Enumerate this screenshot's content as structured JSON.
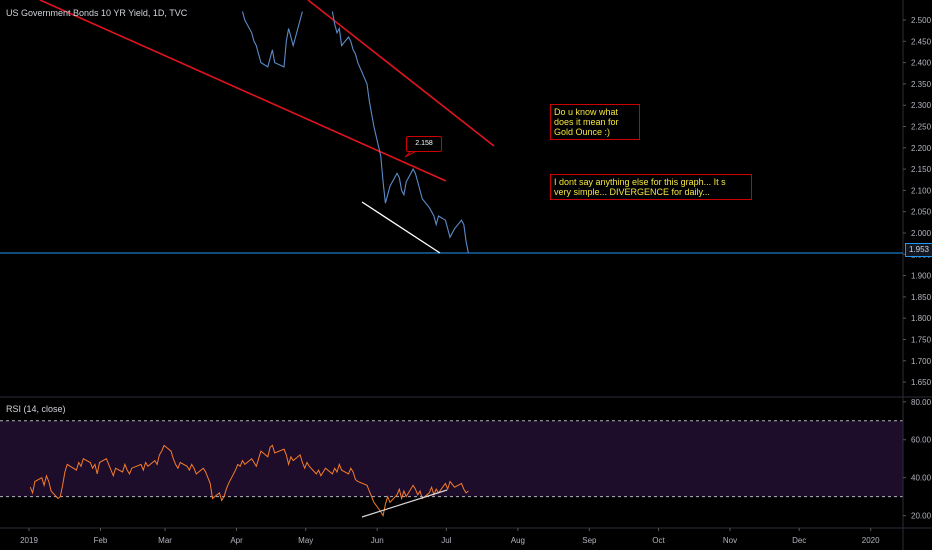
{
  "header": {
    "symbol_title": "US Government Bonds 10 YR Yield, 1D, TVC"
  },
  "rsi_panel": {
    "title": "RSI (14, close)"
  },
  "annotations": {
    "callout_value": "2.158",
    "note1_lines": [
      "Do u know what",
      "does it mean for",
      "Gold Ounce :)"
    ],
    "note2_lines": [
      "I dont say anything else for this graph...  It s",
      "very simple... DIVERGENCE for daily..."
    ]
  },
  "price_tag": "1.953",
  "colors": {
    "background": "#000000",
    "price_line": "#5b8ac7",
    "trendline_red": "#e0141e",
    "divergence_line": "#ffffff",
    "rsi_line": "#f57c2a",
    "rsi_band": "#1d0c2a",
    "current_price_line": "#2196f3"
  },
  "chart_data": {
    "type": "line",
    "x_tick_labels": [
      "2019",
      "Feb",
      "Mar",
      "Apr",
      "May",
      "Jun",
      "Jul",
      "Aug",
      "Sep",
      "Oct",
      "Nov",
      "Dec",
      "2020"
    ],
    "y_tick_labels": [
      "2.500",
      "2.450",
      "2.400",
      "2.350",
      "2.300",
      "2.250",
      "2.200",
      "2.150",
      "2.100",
      "2.050",
      "2.000",
      "1.950",
      "1.900",
      "1.850",
      "1.800",
      "1.750",
      "1.700",
      "1.650"
    ],
    "ylim": [
      1.62,
      2.52
    ],
    "rsi": {
      "y_tick_labels": [
        "80.00",
        "60.00",
        "40.00",
        "20.00"
      ],
      "ylim": [
        14,
        82
      ],
      "band": [
        30,
        70
      ]
    },
    "series": [
      {
        "values_price": [
          [
            "2019-04-04",
            2.52
          ],
          [
            "2019-04-05",
            2.5
          ],
          [
            "2019-04-08",
            2.47
          ],
          [
            "2019-04-09",
            2.45
          ],
          [
            "2019-04-10",
            2.44
          ],
          [
            "2019-04-11",
            2.42
          ],
          [
            "2019-04-12",
            2.4
          ],
          [
            "2019-04-15",
            2.39
          ],
          [
            "2019-04-16",
            2.41
          ],
          [
            "2019-04-17",
            2.43
          ],
          [
            "2019-04-18",
            2.4
          ],
          [
            "2019-04-22",
            2.39
          ],
          [
            "2019-04-23",
            2.45
          ],
          [
            "2019-04-24",
            2.48
          ],
          [
            "2019-04-25",
            2.46
          ],
          [
            "2019-04-26",
            2.44
          ],
          [
            "2019-04-29",
            2.5
          ],
          [
            "2019-04-30",
            2.52
          ],
          [
            "2019-05-13",
            2.52
          ],
          [
            "2019-05-14",
            2.49
          ],
          [
            "2019-05-15",
            2.47
          ],
          [
            "2019-05-16",
            2.48
          ],
          [
            "2019-05-17",
            2.44
          ],
          [
            "2019-05-20",
            2.46
          ],
          [
            "2019-05-21",
            2.45
          ],
          [
            "2019-05-22",
            2.43
          ],
          [
            "2019-05-23",
            2.42
          ],
          [
            "2019-05-24",
            2.4
          ],
          [
            "2019-05-28",
            2.35
          ],
          [
            "2019-05-29",
            2.31
          ],
          [
            "2019-05-30",
            2.28
          ],
          [
            "2019-05-31",
            2.25
          ],
          [
            "2019-06-03",
            2.18
          ],
          [
            "2019-06-04",
            2.12
          ],
          [
            "2019-06-05",
            2.07
          ],
          [
            "2019-06-06",
            2.09
          ],
          [
            "2019-06-07",
            2.11
          ],
          [
            "2019-06-10",
            2.14
          ],
          [
            "2019-06-11",
            2.13
          ],
          [
            "2019-06-12",
            2.1
          ],
          [
            "2019-06-13",
            2.09
          ],
          [
            "2019-06-14",
            2.12
          ],
          [
            "2019-06-17",
            2.15
          ],
          [
            "2019-06-18",
            2.14
          ],
          [
            "2019-06-19",
            2.12
          ],
          [
            "2019-06-20",
            2.1
          ],
          [
            "2019-06-21",
            2.08
          ],
          [
            "2019-06-24",
            2.06
          ],
          [
            "2019-06-25",
            2.05
          ],
          [
            "2019-06-26",
            2.04
          ],
          [
            "2019-06-27",
            2.02
          ],
          [
            "2019-06-28",
            2.04
          ],
          [
            "2019-07-01",
            2.03
          ],
          [
            "2019-07-02",
            2.01
          ],
          [
            "2019-07-03",
            1.99
          ],
          [
            "2019-07-05",
            2.01
          ],
          [
            "2019-07-08",
            2.03
          ],
          [
            "2019-07-09",
            2.02
          ],
          [
            "2019-07-10",
            1.98
          ],
          [
            "2019-07-11",
            1.953
          ]
        ],
        "values_rsi": [
          [
            "2019-01-02",
            35
          ],
          [
            "2019-01-03",
            32
          ],
          [
            "2019-01-04",
            38
          ],
          [
            "2019-01-07",
            40
          ],
          [
            "2019-01-08",
            36
          ],
          [
            "2019-01-09",
            41
          ],
          [
            "2019-01-10",
            38
          ],
          [
            "2019-01-11",
            33
          ],
          [
            "2019-01-14",
            29
          ],
          [
            "2019-01-15",
            30
          ],
          [
            "2019-01-16",
            36
          ],
          [
            "2019-01-17",
            43
          ],
          [
            "2019-01-18",
            47
          ],
          [
            "2019-01-22",
            44
          ],
          [
            "2019-01-23",
            48
          ],
          [
            "2019-01-24",
            46
          ],
          [
            "2019-01-25",
            50
          ],
          [
            "2019-01-28",
            48
          ],
          [
            "2019-01-29",
            45
          ],
          [
            "2019-01-30",
            47
          ],
          [
            "2019-01-31",
            42
          ],
          [
            "2019-02-01",
            48
          ],
          [
            "2019-02-04",
            50
          ],
          [
            "2019-02-05",
            47
          ],
          [
            "2019-02-06",
            44
          ],
          [
            "2019-02-07",
            41
          ],
          [
            "2019-02-08",
            45
          ],
          [
            "2019-02-11",
            43
          ],
          [
            "2019-02-12",
            47
          ],
          [
            "2019-02-13",
            44
          ],
          [
            "2019-02-14",
            42
          ],
          [
            "2019-02-15",
            45
          ],
          [
            "2019-02-19",
            47
          ],
          [
            "2019-02-20",
            44
          ],
          [
            "2019-02-21",
            48
          ],
          [
            "2019-02-22",
            46
          ],
          [
            "2019-02-25",
            49
          ],
          [
            "2019-02-26",
            47
          ],
          [
            "2019-02-27",
            52
          ],
          [
            "2019-02-28",
            54
          ],
          [
            "2019-03-01",
            57
          ],
          [
            "2019-03-04",
            54
          ],
          [
            "2019-03-05",
            50
          ],
          [
            "2019-03-06",
            47
          ],
          [
            "2019-03-07",
            45
          ],
          [
            "2019-03-08",
            48
          ],
          [
            "2019-03-11",
            46
          ],
          [
            "2019-03-12",
            44
          ],
          [
            "2019-03-13",
            47
          ],
          [
            "2019-03-14",
            45
          ],
          [
            "2019-03-15",
            42
          ],
          [
            "2019-03-18",
            45
          ],
          [
            "2019-03-19",
            43
          ],
          [
            "2019-03-20",
            40
          ],
          [
            "2019-03-21",
            37
          ],
          [
            "2019-03-22",
            29
          ],
          [
            "2019-03-25",
            32
          ],
          [
            "2019-03-26",
            28
          ],
          [
            "2019-03-27",
            30
          ],
          [
            "2019-03-28",
            34
          ],
          [
            "2019-03-29",
            37
          ],
          [
            "2019-04-01",
            44
          ],
          [
            "2019-04-02",
            47
          ],
          [
            "2019-04-03",
            46
          ],
          [
            "2019-04-04",
            49
          ],
          [
            "2019-04-05",
            47
          ],
          [
            "2019-04-08",
            50
          ],
          [
            "2019-04-09",
            48
          ],
          [
            "2019-04-10",
            46
          ],
          [
            "2019-04-11",
            50
          ],
          [
            "2019-04-12",
            54
          ],
          [
            "2019-04-15",
            51
          ],
          [
            "2019-04-16",
            56
          ],
          [
            "2019-04-17",
            57
          ],
          [
            "2019-04-18",
            53
          ],
          [
            "2019-04-22",
            55
          ],
          [
            "2019-04-23",
            52
          ],
          [
            "2019-04-24",
            47
          ],
          [
            "2019-04-25",
            51
          ],
          [
            "2019-04-26",
            49
          ],
          [
            "2019-04-29",
            52
          ],
          [
            "2019-04-30",
            48
          ],
          [
            "2019-05-01",
            45
          ],
          [
            "2019-05-02",
            48
          ],
          [
            "2019-05-03",
            46
          ],
          [
            "2019-05-06",
            42
          ],
          [
            "2019-05-07",
            44
          ],
          [
            "2019-05-08",
            41
          ],
          [
            "2019-05-09",
            43
          ],
          [
            "2019-05-10",
            45
          ],
          [
            "2019-05-13",
            42
          ],
          [
            "2019-05-14",
            45
          ],
          [
            "2019-05-15",
            43
          ],
          [
            "2019-05-16",
            47
          ],
          [
            "2019-05-17",
            44
          ],
          [
            "2019-05-20",
            42
          ],
          [
            "2019-05-21",
            45
          ],
          [
            "2019-05-22",
            43
          ],
          [
            "2019-05-23",
            39
          ],
          [
            "2019-05-24",
            38
          ],
          [
            "2019-05-28",
            36
          ],
          [
            "2019-05-29",
            33
          ],
          [
            "2019-05-30",
            30
          ],
          [
            "2019-05-31",
            27
          ],
          [
            "2019-06-03",
            22
          ],
          [
            "2019-06-04",
            20
          ],
          [
            "2019-06-05",
            26
          ],
          [
            "2019-06-06",
            30
          ],
          [
            "2019-06-07",
            27
          ],
          [
            "2019-06-10",
            31
          ],
          [
            "2019-06-11",
            34
          ],
          [
            "2019-06-12",
            29
          ],
          [
            "2019-06-13",
            33
          ],
          [
            "2019-06-14",
            30
          ],
          [
            "2019-06-17",
            36
          ],
          [
            "2019-06-18",
            34
          ],
          [
            "2019-06-19",
            31
          ],
          [
            "2019-06-20",
            33
          ],
          [
            "2019-06-21",
            29
          ],
          [
            "2019-06-24",
            32
          ],
          [
            "2019-06-25",
            35
          ],
          [
            "2019-06-26",
            31
          ],
          [
            "2019-06-27",
            34
          ],
          [
            "2019-06-28",
            32
          ],
          [
            "2019-07-01",
            37
          ],
          [
            "2019-07-02",
            34
          ],
          [
            "2019-07-03",
            38
          ],
          [
            "2019-07-05",
            35
          ],
          [
            "2019-07-08",
            37
          ],
          [
            "2019-07-09",
            34
          ],
          [
            "2019-07-10",
            32
          ],
          [
            "2019-07-11",
            33
          ]
        ]
      }
    ]
  }
}
